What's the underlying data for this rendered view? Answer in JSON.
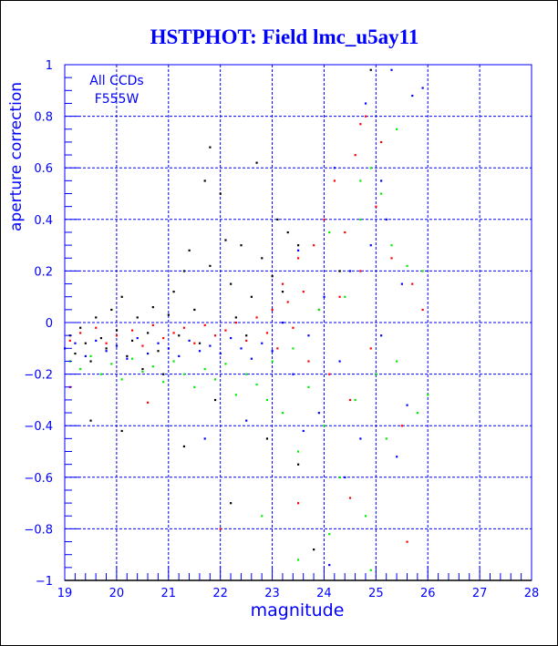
{
  "chart_data": {
    "type": "scatter",
    "title": "HSTPHOT: Field lmc_u5ay11",
    "xlabel": "magnitude",
    "ylabel": "aperture correction",
    "annotation": [
      "All CCDs",
      "F555W"
    ],
    "xlim": [
      19,
      28
    ],
    "ylim": [
      -1,
      1
    ],
    "xticks": [
      19,
      20,
      21,
      22,
      23,
      24,
      25,
      26,
      27,
      28
    ],
    "yticks": [
      -1,
      -0.8,
      -0.6,
      -0.4,
      -0.2,
      0,
      0.2,
      0.4,
      0.6,
      0.8,
      1
    ],
    "ytick_labels": [
      "−1",
      "−0.8",
      "−0.6",
      "−0.4",
      "−0.2",
      "0",
      "0.2",
      "0.4",
      "0.6",
      "0.8",
      "1"
    ],
    "grid": true,
    "axis_color": "#0000ff",
    "series": [
      {
        "color": "#000000",
        "points": [
          [
            19.1,
            -0.05
          ],
          [
            19.2,
            -0.12
          ],
          [
            19.3,
            -0.02
          ],
          [
            19.4,
            -0.08
          ],
          [
            19.5,
            -0.15
          ],
          [
            19.6,
            0.02
          ],
          [
            19.7,
            -0.06
          ],
          [
            19.8,
            -0.1
          ],
          [
            19.9,
            0.05
          ],
          [
            20.0,
            -0.03
          ],
          [
            20.1,
            0.1
          ],
          [
            20.2,
            -0.13
          ],
          [
            20.3,
            -0.07
          ],
          [
            20.4,
            0.02
          ],
          [
            20.5,
            -0.18
          ],
          [
            20.6,
            -0.04
          ],
          [
            20.7,
            0.06
          ],
          [
            20.8,
            -0.11
          ],
          [
            20.9,
            -0.2
          ],
          [
            21.0,
            0.03
          ],
          [
            21.1,
            0.12
          ],
          [
            21.2,
            -0.05
          ],
          [
            21.3,
            0.2
          ],
          [
            21.4,
            0.28
          ],
          [
            21.5,
            0.05
          ],
          [
            21.6,
            -0.08
          ],
          [
            21.7,
            0.55
          ],
          [
            21.8,
            0.22
          ],
          [
            21.9,
            -0.3
          ],
          [
            22.0,
            0.5
          ],
          [
            22.1,
            0.32
          ],
          [
            22.2,
            0.15
          ],
          [
            22.3,
            0.02
          ],
          [
            22.4,
            0.3
          ],
          [
            22.5,
            -0.05
          ],
          [
            22.6,
            0.1
          ],
          [
            22.7,
            0.62
          ],
          [
            22.8,
            0.25
          ],
          [
            22.9,
            -0.45
          ],
          [
            23.0,
            0.18
          ],
          [
            23.1,
            0.4
          ],
          [
            23.2,
            0.12
          ],
          [
            23.3,
            0.35
          ],
          [
            23.5,
            0.3
          ],
          [
            23.8,
            -0.88
          ],
          [
            19.5,
            -0.38
          ],
          [
            20.1,
            -0.42
          ],
          [
            21.8,
            0.68
          ],
          [
            24.3,
            0.2
          ],
          [
            22.2,
            -0.7
          ],
          [
            21.3,
            -0.48
          ],
          [
            23.5,
            -0.55
          ],
          [
            24.9,
            0.98
          ]
        ]
      },
      {
        "color": "#ff0000",
        "points": [
          [
            19.1,
            -0.07
          ],
          [
            19.3,
            -0.04
          ],
          [
            19.6,
            -0.02
          ],
          [
            19.8,
            -0.08
          ],
          [
            20.0,
            -0.05
          ],
          [
            20.3,
            -0.03
          ],
          [
            20.5,
            -0.09
          ],
          [
            20.7,
            -0.01
          ],
          [
            20.9,
            -0.06
          ],
          [
            21.1,
            -0.04
          ],
          [
            21.3,
            -0.02
          ],
          [
            21.5,
            -0.08
          ],
          [
            21.7,
            -0.01
          ],
          [
            21.9,
            -0.05
          ],
          [
            22.1,
            -0.03
          ],
          [
            22.3,
            0.0
          ],
          [
            22.5,
            -0.07
          ],
          [
            22.7,
            0.02
          ],
          [
            22.9,
            -0.04
          ],
          [
            23.0,
            0.05
          ],
          [
            23.1,
            -0.1
          ],
          [
            23.2,
            0.15
          ],
          [
            23.3,
            0.08
          ],
          [
            23.4,
            -0.02
          ],
          [
            23.5,
            0.25
          ],
          [
            23.6,
            0.12
          ],
          [
            23.7,
            -0.15
          ],
          [
            23.8,
            0.3
          ],
          [
            23.9,
            0.05
          ],
          [
            24.0,
            0.4
          ],
          [
            24.1,
            -0.2
          ],
          [
            24.2,
            0.55
          ],
          [
            24.3,
            0.1
          ],
          [
            24.4,
            0.35
          ],
          [
            24.5,
            -0.3
          ],
          [
            24.6,
            0.65
          ],
          [
            24.7,
            0.2
          ],
          [
            24.8,
            0.8
          ],
          [
            24.9,
            -0.1
          ],
          [
            25.0,
            0.45
          ],
          [
            25.1,
            0.7
          ],
          [
            25.3,
            0.25
          ],
          [
            25.5,
            -0.4
          ],
          [
            25.7,
            0.15
          ],
          [
            25.9,
            0.05
          ],
          [
            20.6,
            -0.31
          ],
          [
            22.0,
            -0.8
          ],
          [
            23.5,
            -0.7
          ],
          [
            24.5,
            -0.68
          ],
          [
            25.6,
            -0.85
          ],
          [
            19.1,
            -0.25
          ],
          [
            24.7,
            0.77
          ]
        ]
      },
      {
        "color": "#0000ff",
        "points": [
          [
            19.0,
            -0.1
          ],
          [
            19.2,
            -0.08
          ],
          [
            19.4,
            -0.13
          ],
          [
            19.6,
            -0.07
          ],
          [
            19.8,
            -0.11
          ],
          [
            20.0,
            -0.09
          ],
          [
            20.2,
            -0.14
          ],
          [
            20.4,
            -0.06
          ],
          [
            20.6,
            -0.12
          ],
          [
            20.8,
            -0.08
          ],
          [
            21.0,
            -0.1
          ],
          [
            21.2,
            -0.13
          ],
          [
            21.4,
            -0.07
          ],
          [
            21.6,
            -0.11
          ],
          [
            21.8,
            -0.09
          ],
          [
            22.0,
            -0.12
          ],
          [
            22.2,
            -0.06
          ],
          [
            22.4,
            -0.1
          ],
          [
            22.6,
            -0.14
          ],
          [
            22.8,
            -0.08
          ],
          [
            23.0,
            -0.11
          ],
          [
            23.2,
            0.0
          ],
          [
            23.4,
            -0.2
          ],
          [
            23.5,
            0.28
          ],
          [
            23.7,
            -0.05
          ],
          [
            23.9,
            -0.35
          ],
          [
            24.0,
            0.1
          ],
          [
            24.2,
            0.6
          ],
          [
            24.3,
            -0.15
          ],
          [
            24.5,
            0.2
          ],
          [
            24.7,
            -0.45
          ],
          [
            24.8,
            0.85
          ],
          [
            24.9,
            0.3
          ],
          [
            25.0,
            -0.2
          ],
          [
            25.1,
            0.55
          ],
          [
            25.3,
            0.98
          ],
          [
            25.4,
            -0.52
          ],
          [
            25.5,
            0.15
          ],
          [
            25.7,
            0.88
          ],
          [
            25.9,
            0.91
          ],
          [
            25.1,
            -0.05
          ],
          [
            24.4,
            -0.6
          ],
          [
            23.6,
            -0.42
          ],
          [
            22.5,
            -0.38
          ],
          [
            21.7,
            -0.45
          ],
          [
            24.1,
            -0.94
          ],
          [
            25.2,
            0.4
          ],
          [
            25.6,
            -0.32
          ]
        ]
      },
      {
        "color": "#00ee00",
        "points": [
          [
            19.1,
            -0.15
          ],
          [
            19.3,
            -0.18
          ],
          [
            19.5,
            -0.13
          ],
          [
            19.7,
            -0.2
          ],
          [
            19.9,
            -0.16
          ],
          [
            20.1,
            -0.22
          ],
          [
            20.3,
            -0.14
          ],
          [
            20.5,
            -0.19
          ],
          [
            20.7,
            -0.17
          ],
          [
            20.9,
            -0.23
          ],
          [
            21.1,
            -0.15
          ],
          [
            21.3,
            -0.2
          ],
          [
            21.5,
            -0.25
          ],
          [
            21.7,
            -0.18
          ],
          [
            21.9,
            -0.22
          ],
          [
            22.1,
            -0.16
          ],
          [
            22.3,
            -0.28
          ],
          [
            22.5,
            -0.2
          ],
          [
            22.7,
            -0.24
          ],
          [
            22.9,
            -0.3
          ],
          [
            23.0,
            -0.15
          ],
          [
            23.2,
            -0.35
          ],
          [
            23.4,
            -0.1
          ],
          [
            23.5,
            -0.5
          ],
          [
            23.7,
            -0.25
          ],
          [
            23.9,
            0.05
          ],
          [
            24.0,
            -0.4
          ],
          [
            24.1,
            0.35
          ],
          [
            24.3,
            -0.6
          ],
          [
            24.4,
            0.1
          ],
          [
            24.6,
            -0.3
          ],
          [
            24.7,
            0.4
          ],
          [
            24.8,
            -0.75
          ],
          [
            24.9,
            0.6
          ],
          [
            25.0,
            -0.2
          ],
          [
            25.1,
            0.5
          ],
          [
            25.2,
            -0.45
          ],
          [
            25.3,
            0.3
          ],
          [
            25.4,
            -0.15
          ],
          [
            25.6,
            0.22
          ],
          [
            25.8,
            -0.35
          ],
          [
            25.9,
            0.2
          ],
          [
            26.0,
            -0.28
          ],
          [
            23.5,
            -0.92
          ],
          [
            24.1,
            -0.82
          ],
          [
            24.9,
            -0.96
          ],
          [
            24.7,
            0.55
          ],
          [
            25.4,
            0.75
          ],
          [
            22.8,
            -0.75
          ]
        ]
      }
    ]
  }
}
